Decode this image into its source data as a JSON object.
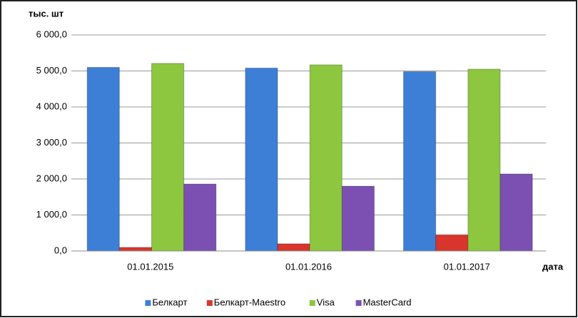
{
  "chart_data": {
    "type": "bar",
    "y_label": "тыс. шт",
    "x_label": "дата",
    "categories": [
      "01.01.2015",
      "01.01.2016",
      "01.01.2017"
    ],
    "series": [
      {
        "name": "Белкарт",
        "color": "#3d7fd7",
        "values": [
          5100,
          5080,
          4980
        ]
      },
      {
        "name": "Белкарт-Maestro",
        "color": "#d8352c",
        "values": [
          100,
          200,
          450
        ]
      },
      {
        "name": "Visa",
        "color": "#8dc63f",
        "values": [
          5210,
          5170,
          5050
        ]
      },
      {
        "name": "MasterCard",
        "color": "#7b50b2",
        "values": [
          1860,
          1800,
          2140
        ]
      }
    ],
    "ylim": [
      0,
      6000
    ],
    "yticks": [
      {
        "value": 0,
        "label": "0,0"
      },
      {
        "value": 1000,
        "label": "1 000,0"
      },
      {
        "value": 2000,
        "label": "2 000,0"
      },
      {
        "value": 3000,
        "label": "3 000,0"
      },
      {
        "value": 4000,
        "label": "4 000,0"
      },
      {
        "value": 5000,
        "label": "5 000,0"
      },
      {
        "value": 6000,
        "label": "6 000,0"
      }
    ],
    "grid": true,
    "legend": "bottom"
  }
}
